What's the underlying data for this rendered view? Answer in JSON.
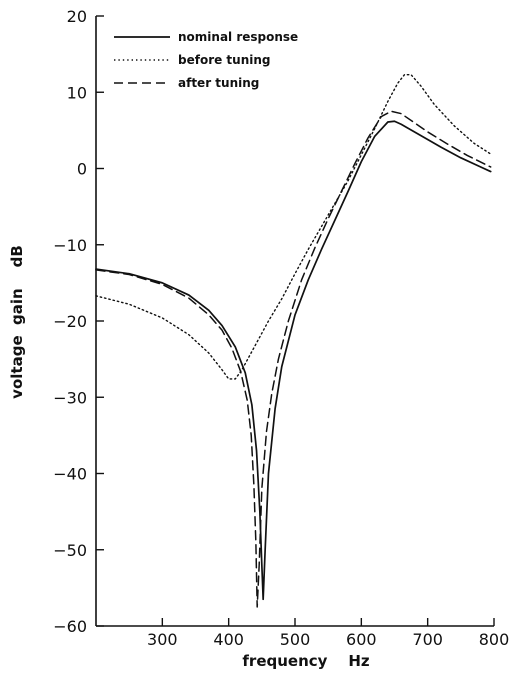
{
  "chart_data": {
    "type": "line",
    "xlabel": "frequency    Hz",
    "ylabel": "voltage  gain    dB",
    "xlim": [
      200,
      800
    ],
    "ylim": [
      -60,
      20
    ],
    "xticks": [
      300,
      400,
      500,
      600,
      700,
      800
    ],
    "yticks": [
      -60,
      -50,
      -40,
      -30,
      -20,
      -10,
      0,
      10,
      20
    ],
    "grid": false,
    "legend_position": "top-left",
    "series": [
      {
        "name": "nominal response",
        "style": "solid",
        "x": [
          200,
          250,
          300,
          340,
          370,
          390,
          410,
          425,
          435,
          442,
          447,
          450,
          452,
          455,
          460,
          470,
          480,
          500,
          520,
          540,
          560,
          580,
          600,
          620,
          640,
          650,
          660,
          680,
          700,
          720,
          750,
          780,
          795
        ],
        "y": [
          -13.2,
          -13.8,
          -15.0,
          -16.6,
          -18.6,
          -20.6,
          -23.4,
          -26.8,
          -31.0,
          -37.0,
          -45.0,
          -52.0,
          -56.5,
          -50.0,
          -40.0,
          -31.5,
          -26.0,
          -19.2,
          -14.6,
          -10.6,
          -6.8,
          -3.0,
          0.9,
          4.2,
          6.1,
          6.2,
          5.8,
          4.8,
          3.8,
          2.8,
          1.4,
          0.2,
          -0.4
        ]
      },
      {
        "name": "before tuning",
        "style": "dotted",
        "x": [
          200,
          250,
          300,
          340,
          370,
          390,
          400,
          410,
          420,
          430,
          440,
          460,
          480,
          500,
          520,
          540,
          560,
          580,
          600,
          620,
          640,
          655,
          665,
          675,
          690,
          710,
          740,
          770,
          795
        ],
        "y": [
          -16.7,
          -17.8,
          -19.6,
          -21.8,
          -24.2,
          -26.4,
          -27.6,
          -27.6,
          -26.4,
          -24.8,
          -23.2,
          -20.0,
          -17.1,
          -13.8,
          -10.6,
          -7.6,
          -4.6,
          -1.6,
          1.8,
          5.2,
          8.8,
          11.2,
          12.3,
          12.3,
          10.8,
          8.4,
          5.6,
          3.3,
          1.9
        ]
      },
      {
        "name": "after tuning",
        "style": "dashed",
        "x": [
          200,
          250,
          300,
          340,
          370,
          390,
          405,
          418,
          428,
          434,
          438,
          441,
          443,
          446,
          450,
          457,
          465,
          475,
          490,
          510,
          530,
          550,
          570,
          590,
          610,
          630,
          645,
          660,
          680,
          700,
          730,
          760,
          795
        ],
        "y": [
          -13.3,
          -13.9,
          -15.2,
          -17.0,
          -19.2,
          -21.2,
          -23.6,
          -26.6,
          -30.4,
          -35.0,
          -41.5,
          -49.0,
          -57.5,
          -52.0,
          -42.0,
          -34.5,
          -29.5,
          -25.0,
          -20.0,
          -14.6,
          -10.4,
          -6.6,
          -3.0,
          0.6,
          4.0,
          6.8,
          7.5,
          7.2,
          6.0,
          4.8,
          3.2,
          1.7,
          0.2
        ]
      }
    ]
  }
}
